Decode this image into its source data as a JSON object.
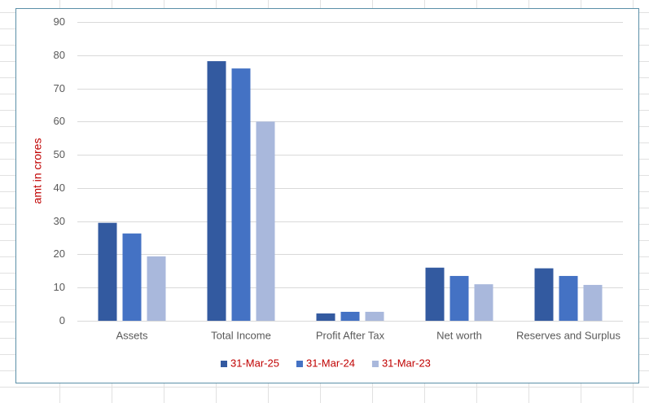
{
  "chart_data": {
    "type": "bar",
    "y_axis_label": "amt in crores",
    "categories": [
      "Assets",
      "Total Income",
      "Profit After Tax",
      "Net worth",
      "Reserves and Surplus"
    ],
    "series": [
      {
        "name": "31-Mar-25",
        "color": "#335aa0",
        "values": [
          29.5,
          78.2,
          2.2,
          16,
          15.8
        ]
      },
      {
        "name": "31-Mar-24",
        "color": "#4472c4",
        "values": [
          26.3,
          76,
          2.7,
          13.5,
          13.5
        ]
      },
      {
        "name": "31-Mar-23",
        "color": "#a9b8dc",
        "values": [
          19.4,
          60,
          2.7,
          11,
          10.8
        ]
      }
    ],
    "ylim": [
      0,
      90
    ],
    "yticks": [
      0,
      10,
      20,
      30,
      40,
      50,
      60,
      70,
      80,
      90
    ],
    "grid": true,
    "legend": "bottom"
  }
}
